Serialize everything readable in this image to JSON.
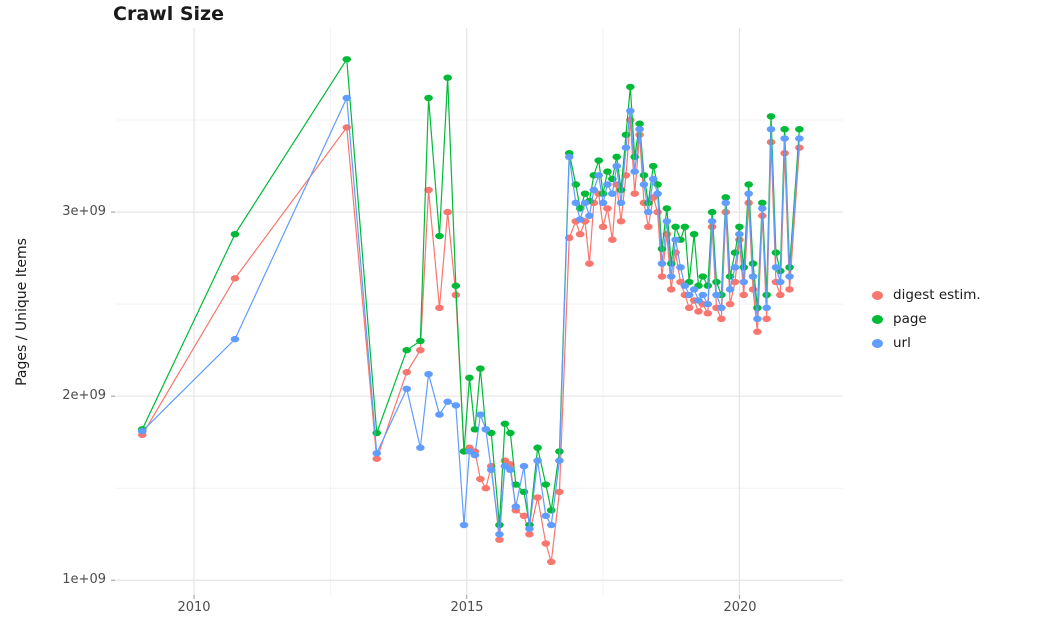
{
  "chart_data": {
    "type": "line",
    "title": "Crawl Size",
    "xlabel": "",
    "ylabel": "Pages / Unique Items",
    "values_unit": "1e9 (billions of pages / unique items)",
    "grid": true,
    "legend_position": "right",
    "xlim": [
      2008.55,
      2021.9
    ],
    "ylim": [
      0.92,
      4.0
    ],
    "xticks": [
      {
        "value": 2010,
        "label": "2010"
      },
      {
        "value": 2015,
        "label": "2015"
      },
      {
        "value": 2020,
        "label": "2020"
      }
    ],
    "yticks": [
      {
        "value": 1,
        "label": "1e+09"
      },
      {
        "value": 2,
        "label": "2e+09"
      },
      {
        "value": 3,
        "label": "3e+09"
      }
    ],
    "x_minor": [
      2012.5,
      2017.5
    ],
    "y_minor": [
      1.5,
      2.5,
      3.5
    ],
    "x": [
      2009.05,
      2010.75,
      2012.8,
      2013.35,
      2013.9,
      2014.15,
      2014.3,
      2014.5,
      2014.65,
      2014.8,
      2014.95,
      2015.05,
      2015.15,
      2015.25,
      2015.35,
      2015.45,
      2015.6,
      2015.7,
      2015.8,
      2015.9,
      2016.05,
      2016.15,
      2016.3,
      2016.45,
      2016.55,
      2016.7,
      2016.88,
      2017.0,
      2017.08,
      2017.17,
      2017.25,
      2017.33,
      2017.42,
      2017.5,
      2017.58,
      2017.67,
      2017.75,
      2017.83,
      2017.92,
      2018.0,
      2018.08,
      2018.17,
      2018.25,
      2018.33,
      2018.42,
      2018.5,
      2018.58,
      2018.67,
      2018.75,
      2018.83,
      2018.92,
      2019.0,
      2019.08,
      2019.17,
      2019.25,
      2019.33,
      2019.42,
      2019.5,
      2019.58,
      2019.67,
      2019.75,
      2019.83,
      2019.92,
      2020.0,
      2020.08,
      2020.17,
      2020.25,
      2020.33,
      2020.42,
      2020.5,
      2020.58,
      2020.67,
      2020.75,
      2020.83,
      2020.92,
      2021.1
    ],
    "series": [
      {
        "id": "digest-estim",
        "name": "digest estim.",
        "color": "#F8766D",
        "values": [
          1.79,
          2.64,
          3.46,
          1.66,
          2.13,
          2.25,
          3.12,
          2.48,
          3.0,
          2.55,
          1.7,
          1.72,
          1.7,
          1.55,
          1.5,
          1.62,
          1.22,
          1.65,
          1.63,
          1.38,
          1.35,
          1.25,
          1.45,
          1.2,
          1.1,
          1.48,
          2.86,
          2.95,
          2.88,
          2.95,
          2.72,
          3.05,
          3.1,
          2.92,
          3.02,
          2.85,
          3.15,
          2.95,
          3.2,
          3.5,
          3.1,
          3.42,
          3.05,
          2.92,
          3.08,
          3.0,
          2.65,
          2.88,
          2.58,
          2.78,
          2.62,
          2.55,
          2.48,
          2.52,
          2.46,
          2.5,
          2.45,
          2.92,
          2.48,
          2.42,
          3.0,
          2.5,
          2.62,
          2.85,
          2.55,
          3.05,
          2.58,
          2.35,
          2.98,
          2.42,
          3.38,
          2.62,
          2.55,
          3.32,
          2.58,
          3.35
        ]
      },
      {
        "id": "page",
        "name": "page",
        "color": "#00BA38",
        "values": [
          1.82,
          2.88,
          3.83,
          1.8,
          2.25,
          2.3,
          3.62,
          2.87,
          3.73,
          2.6,
          1.7,
          2.1,
          1.82,
          2.15,
          1.82,
          1.8,
          1.3,
          1.85,
          1.8,
          1.52,
          1.48,
          1.3,
          1.72,
          1.52,
          1.38,
          1.7,
          3.32,
          3.15,
          3.02,
          3.1,
          3.06,
          3.2,
          3.28,
          3.1,
          3.22,
          3.18,
          3.3,
          3.12,
          3.42,
          3.68,
          3.3,
          3.48,
          3.2,
          3.05,
          3.25,
          3.15,
          2.8,
          3.02,
          2.72,
          2.92,
          2.85,
          2.92,
          2.62,
          2.88,
          2.6,
          2.65,
          2.6,
          3.0,
          2.62,
          2.55,
          3.08,
          2.65,
          2.78,
          2.92,
          2.7,
          3.15,
          2.72,
          2.48,
          3.05,
          2.55,
          3.52,
          2.78,
          2.68,
          3.45,
          2.7,
          3.45
        ]
      },
      {
        "id": "url",
        "name": "url",
        "color": "#619CFF",
        "values": [
          1.81,
          2.31,
          3.62,
          1.69,
          2.04,
          1.72,
          2.12,
          1.9,
          1.97,
          1.95,
          1.3,
          1.7,
          1.68,
          1.9,
          1.82,
          1.6,
          1.25,
          1.62,
          1.6,
          1.4,
          1.62,
          1.28,
          1.65,
          1.35,
          1.3,
          1.65,
          3.3,
          3.05,
          2.96,
          3.05,
          2.98,
          3.12,
          3.2,
          3.05,
          3.15,
          3.1,
          3.25,
          3.05,
          3.35,
          3.55,
          3.22,
          3.45,
          3.15,
          3.0,
          3.18,
          3.1,
          2.72,
          2.95,
          2.65,
          2.85,
          2.7,
          2.6,
          2.55,
          2.58,
          2.52,
          2.55,
          2.5,
          2.95,
          2.55,
          2.48,
          3.05,
          2.58,
          2.7,
          2.88,
          2.62,
          3.1,
          2.65,
          2.42,
          3.02,
          2.48,
          3.45,
          2.7,
          2.62,
          3.4,
          2.65,
          3.4
        ]
      }
    ]
  }
}
